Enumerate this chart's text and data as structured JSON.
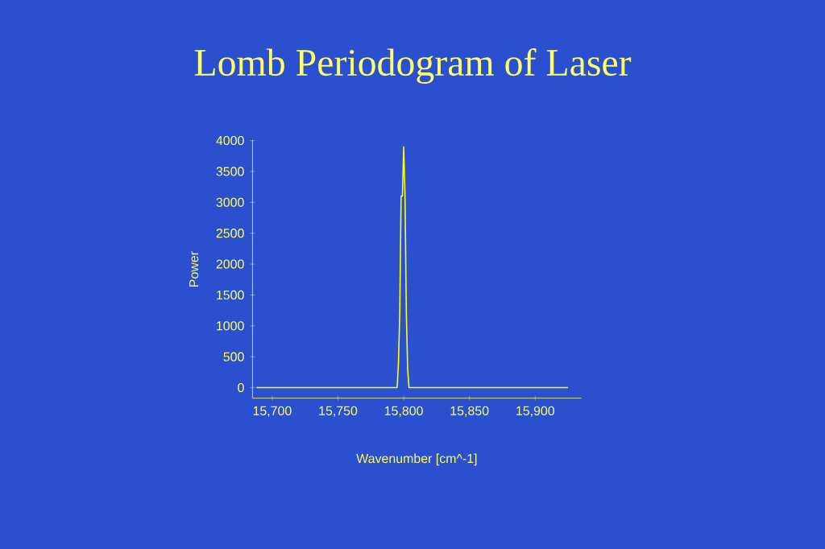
{
  "chart_data": {
    "type": "line",
    "title": "Lomb Periodogram of Laser",
    "xlabel": "Wavenumber [cm^-1]",
    "ylabel": "Power",
    "x": [
      15688,
      15795,
      15796,
      15797,
      15798,
      15799,
      15800,
      15801,
      15802,
      15803,
      15804,
      15925
    ],
    "series": [
      {
        "color": "#ffff00",
        "values": [
          0,
          0,
          400,
          1200,
          3100,
          3100,
          3900,
          3100,
          1200,
          300,
          0,
          0
        ]
      }
    ],
    "xlim": [
      15685,
      15935
    ],
    "ylim": [
      -170,
      4000
    ],
    "xticks": [
      {
        "value": 15700,
        "label": "15,700"
      },
      {
        "value": 15750,
        "label": "15,750"
      },
      {
        "value": 15800,
        "label": "15,800"
      },
      {
        "value": 15850,
        "label": "15,850"
      },
      {
        "value": 15900,
        "label": "15,900"
      }
    ],
    "yticks": [
      0,
      500,
      1000,
      1500,
      2000,
      2500,
      3000,
      3500,
      4000
    ],
    "grid": false,
    "marker": "none",
    "line_style": "solid"
  }
}
